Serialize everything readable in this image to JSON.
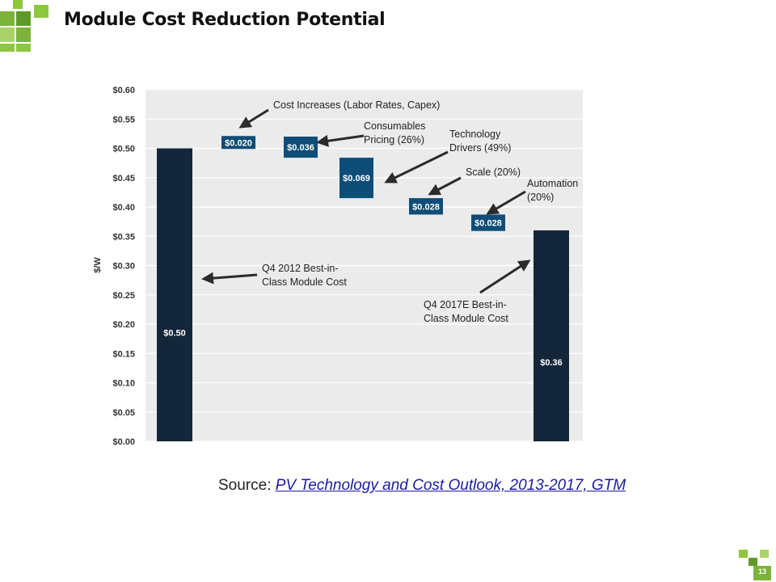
{
  "title": "Module Cost Reduction Potential",
  "source": {
    "prefix": "Source: ",
    "link_text": "PV Technology and Cost Outlook, 2013-2017, GTM"
  },
  "page_number": "13",
  "colors": {
    "accent_green": "#8dc63f",
    "dark_green": "#5e9a2a",
    "bar_dark": "#13263a",
    "bar_blue": "#0e4d77",
    "plot_bg": "#ebebeb"
  },
  "chart_data": {
    "type": "bar",
    "subtype": "waterfall",
    "ylabel": "$/W",
    "ylim": [
      0,
      0.6
    ],
    "yticks": [
      "$0.00",
      "$0.05",
      "$0.10",
      "$0.15",
      "$0.20",
      "$0.25",
      "$0.30",
      "$0.35",
      "$0.40",
      "$0.45",
      "$0.50",
      "$0.55",
      "$0.60"
    ],
    "grid": true,
    "bars": [
      {
        "kind": "total",
        "start": 0,
        "end": 0.5,
        "label": "$0.50"
      },
      {
        "kind": "increase",
        "start": 0.5,
        "end": 0.52,
        "label": "$0.020"
      },
      {
        "kind": "decrease",
        "start": 0.52,
        "end": 0.484,
        "label": "$0.036"
      },
      {
        "kind": "decrease",
        "start": 0.484,
        "end": 0.415,
        "label": "$0.069"
      },
      {
        "kind": "decrease",
        "start": 0.415,
        "end": 0.387,
        "label": "$0.028"
      },
      {
        "kind": "decrease",
        "start": 0.387,
        "end": 0.359,
        "label": "$0.028"
      },
      {
        "kind": "total",
        "start": 0,
        "end": 0.36,
        "label": "$0.36"
      }
    ],
    "annotations": [
      {
        "lines": [
          "Cost Increases (Labor Rates, Capex)"
        ]
      },
      {
        "lines": [
          "Consumables",
          "Pricing (26%)"
        ]
      },
      {
        "lines": [
          "Technology",
          "Drivers (49%)"
        ]
      },
      {
        "lines": [
          "Scale (20%)"
        ]
      },
      {
        "lines": [
          "Automation",
          "(20%)"
        ]
      },
      {
        "lines": [
          "Q4 2012 Best-in-",
          "Class Module Cost"
        ]
      },
      {
        "lines": [
          "Q4 2017E Best-in-",
          "Class Module Cost"
        ]
      }
    ]
  }
}
